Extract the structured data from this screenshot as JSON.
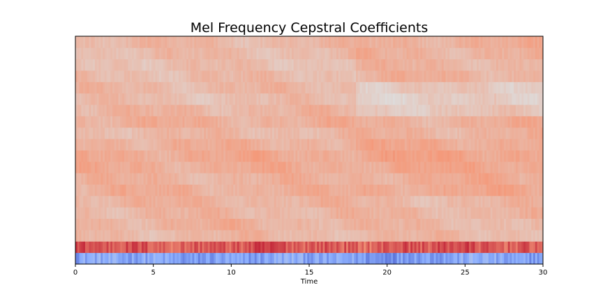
{
  "chart_data": {
    "type": "heatmap",
    "title": "Mel Frequency Cepstral Coefficients",
    "xlabel": "Time",
    "ylabel": "",
    "xlim": [
      0,
      30
    ],
    "xticks": [
      0,
      5,
      10,
      15,
      20,
      25,
      30
    ],
    "xtick_labels": [
      "0",
      "5",
      "10",
      "15",
      "20",
      "25",
      "30"
    ],
    "yticks": [],
    "colormap": "coolwarm",
    "colorbar": false,
    "grid": false,
    "n_coefficients": 20,
    "n_frames": 240,
    "coefficient_order_bottom_to_top": "coefficient 0 at bottom",
    "row_base_levels_bottom_to_top": [
      0.22,
      0.86,
      0.64,
      0.66,
      0.65,
      0.66,
      0.67,
      0.66,
      0.68,
      0.69,
      0.67,
      0.64,
      0.67,
      0.65,
      0.62,
      0.64,
      0.63,
      0.62,
      0.63,
      0.64
    ],
    "notes_visible_pattern": {
      "row0_color": "blue",
      "row1_color": "dark red",
      "upper_rows_color": "light salmon",
      "shift_at_time": 18
    }
  }
}
